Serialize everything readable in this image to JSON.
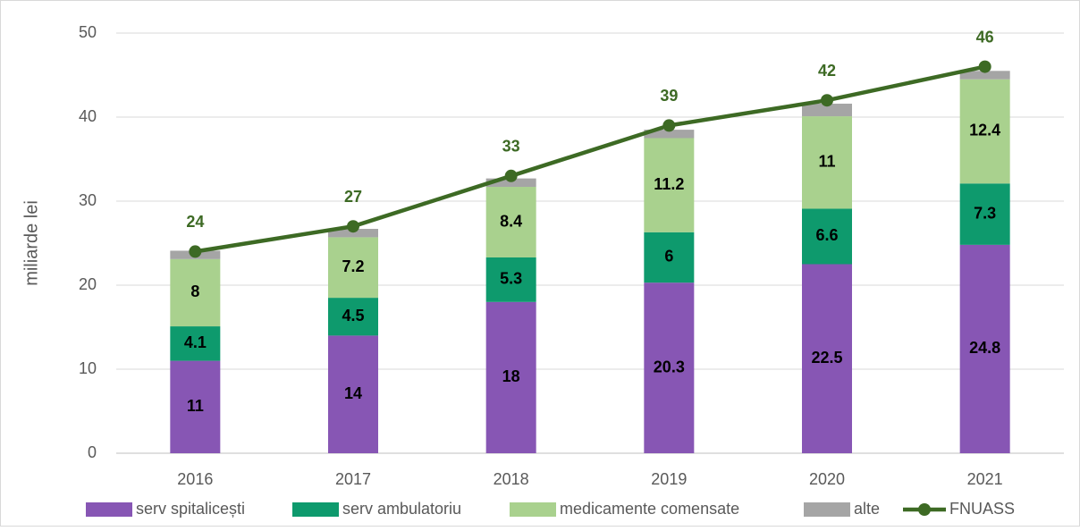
{
  "chart_data": {
    "type": "bar",
    "stacked": true,
    "ylabel": "miliarde lei",
    "categories": [
      "2016",
      "2017",
      "2018",
      "2019",
      "2020",
      "2021"
    ],
    "series": [
      {
        "name": "serv spitalicești",
        "color": "#8756b4",
        "values": [
          11,
          14,
          18,
          20.3,
          22.5,
          24.8
        ]
      },
      {
        "name": "serv ambulatoriu",
        "color": "#0e9a6d",
        "values": [
          4.1,
          4.5,
          5.3,
          6,
          6.6,
          7.3
        ]
      },
      {
        "name": "medicamente comensate",
        "color": "#a9d18e",
        "values": [
          8,
          7.2,
          8.4,
          11.2,
          11,
          12.4
        ]
      },
      {
        "name": "alte",
        "color": "#a5a5a5",
        "values": [
          1,
          1,
          1,
          1,
          1.5,
          1
        ]
      },
      {
        "name": "FNUASS",
        "type": "line",
        "color": "#3d6a24",
        "values": [
          24,
          27,
          33,
          39,
          42,
          46
        ]
      }
    ],
    "ylim": [
      0,
      50
    ],
    "yticks": [
      0,
      10,
      20,
      30,
      40,
      50
    ],
    "grid": true,
    "legend": "bottom"
  }
}
